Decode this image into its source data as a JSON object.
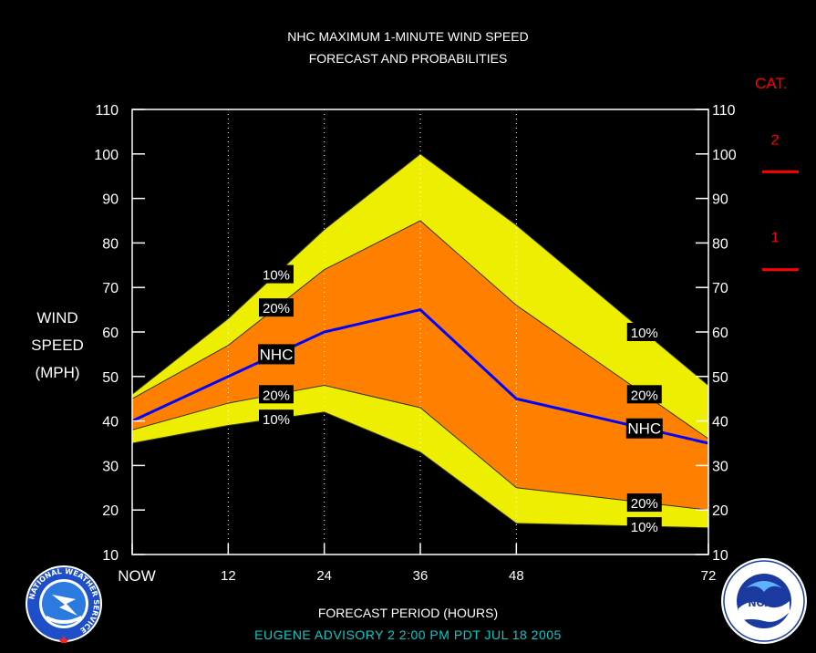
{
  "title_line1": "NHC MAXIMUM 1-MINUTE WIND SPEED",
  "title_line2": "FORECAST AND PROBABILITIES",
  "ylabel_lines": [
    "WIND",
    "SPEED",
    "(MPH)"
  ],
  "xlabel": "FORECAST PERIOD (HOURS)",
  "advisory": "EUGENE   ADVISORY  2  2:00  PM  PDT  JUL  18  2005",
  "category_legend": {
    "title": "CAT.",
    "categories": [
      {
        "label": "2",
        "threshold_mph": 96
      },
      {
        "label": "1",
        "threshold_mph": 74
      }
    ]
  },
  "colors": {
    "background": "#000000",
    "band_10": "#eeee00",
    "band_20": "#ff8000",
    "nhc_line": "#0000ff",
    "category": "#ff0000",
    "advisory_text": "#00cccc"
  },
  "logos": {
    "nws": {
      "name": "nws-logo-icon",
      "ring_text": "NATIONAL WEATHER SERVICE"
    },
    "noaa": {
      "name": "noaa-logo-icon",
      "center_text": "NOAA"
    }
  },
  "chart_data": {
    "type": "area",
    "title": "NHC MAXIMUM 1-MINUTE WIND SPEED FORECAST AND PROBABILITIES",
    "xlabel": "FORECAST PERIOD (HOURS)",
    "ylabel": "WIND SPEED (MPH)",
    "x": [
      0,
      12,
      24,
      36,
      48,
      72
    ],
    "x_tick_labels": [
      "NOW",
      "12",
      "24",
      "36",
      "48",
      "72"
    ],
    "ylim": [
      10,
      110
    ],
    "xlim": [
      0,
      72
    ],
    "y_ticks": [
      10,
      20,
      30,
      40,
      50,
      60,
      70,
      80,
      90,
      100,
      110
    ],
    "grid": "vertical dotted at forecast hours",
    "series": [
      {
        "name": "10%",
        "role": "upper",
        "values": [
          46,
          63,
          83,
          100,
          84,
          48
        ]
      },
      {
        "name": "20%",
        "role": "upper",
        "values": [
          45,
          57,
          74,
          85,
          66,
          36
        ]
      },
      {
        "name": "NHC",
        "role": "forecast",
        "values": [
          40,
          50,
          60,
          65,
          45,
          35
        ]
      },
      {
        "name": "20%",
        "role": "lower",
        "values": [
          38,
          44,
          48,
          43,
          25,
          20
        ]
      },
      {
        "name": "10%",
        "role": "lower",
        "values": [
          35,
          39,
          42,
          33,
          17,
          16
        ]
      }
    ],
    "labels": [
      {
        "text": "10%",
        "series": 0,
        "x": 18
      },
      {
        "text": "20%",
        "series": 1,
        "x": 18
      },
      {
        "text": "NHC",
        "series": 2,
        "x": 18
      },
      {
        "text": "20%",
        "series": 3,
        "x": 18
      },
      {
        "text": "10%",
        "series": 4,
        "x": 18
      },
      {
        "text": "10%",
        "series": 0,
        "x": 64
      },
      {
        "text": "20%",
        "series": 1,
        "x": 64
      },
      {
        "text": "NHC",
        "series": 2,
        "x": 64
      },
      {
        "text": "20%",
        "series": 3,
        "x": 64
      },
      {
        "text": "10%",
        "series": 4,
        "x": 64
      }
    ]
  }
}
